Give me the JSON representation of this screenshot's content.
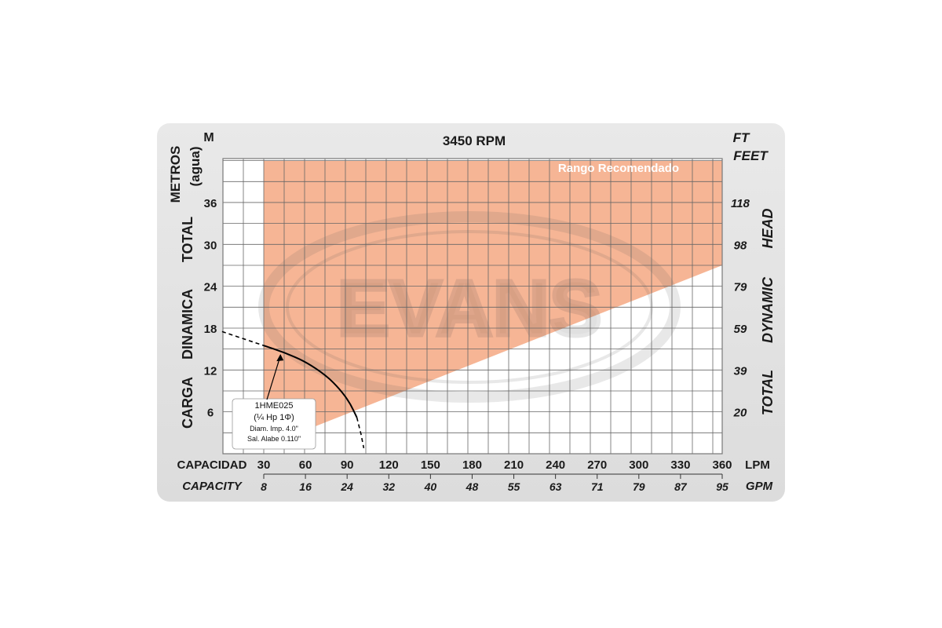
{
  "chart_data": {
    "type": "line",
    "title": "3450 RPM",
    "left_unit": "M",
    "left_axis_title": [
      "CARGA",
      "DINAMICA",
      "TOTAL"
    ],
    "left_axis_unit": [
      "METROS",
      "(agua)"
    ],
    "right_unit": [
      "FT",
      "FEET"
    ],
    "right_axis_title": [
      "TOTAL",
      "DYNAMIC",
      "HEAD"
    ],
    "y_ticks_m": [
      6,
      12,
      18,
      24,
      30,
      36
    ],
    "y_ticks_ft": [
      "20",
      "39",
      "59",
      "79",
      "98",
      "118"
    ],
    "ylim_m": [
      0,
      42
    ],
    "x_label_es": "CAPACIDAD",
    "x_label_en": "CAPACITY",
    "x_unit_lpm": "LPM",
    "x_unit_gpm": "GPM",
    "x_ticks_lpm": [
      30,
      60,
      90,
      120,
      150,
      180,
      210,
      240,
      270,
      300,
      330,
      360
    ],
    "x_ticks_gpm": [
      "8",
      "16",
      "24",
      "32",
      "40",
      "48",
      "55",
      "63",
      "71",
      "79",
      "87",
      "95"
    ],
    "xlim_lpm": [
      0,
      360
    ],
    "grid": true,
    "recommended_range": {
      "label": "Rango Recomendado",
      "color": "#f4a882",
      "polygon_lpm_m": [
        [
          30,
          42
        ],
        [
          360,
          42
        ],
        [
          360,
          27
        ],
        [
          30,
          1
        ]
      ]
    },
    "series": [
      {
        "name": "1HME025",
        "color": "#000000",
        "dashed_before": [
          [
            0,
            17.5
          ],
          [
            30,
            15.5
          ]
        ],
        "solid": [
          [
            30,
            15.5
          ],
          [
            45,
            14.5
          ],
          [
            60,
            13.2
          ],
          [
            75,
            11.2
          ],
          [
            85,
            9.2
          ],
          [
            92,
            7.3
          ],
          [
            97,
            5.2
          ]
        ],
        "dashed_after": [
          [
            97,
            5.2
          ],
          [
            100,
            2.8
          ],
          [
            102,
            0.8
          ]
        ]
      }
    ],
    "annotation": {
      "lines": [
        "1HME025",
        "(¼ Hp 1Φ)",
        "Diam. Imp. 4.0\"",
        "Sal. Alabe 0.110\""
      ],
      "points_to": [
        42,
        14.5
      ]
    },
    "watermark": "EVANS"
  }
}
